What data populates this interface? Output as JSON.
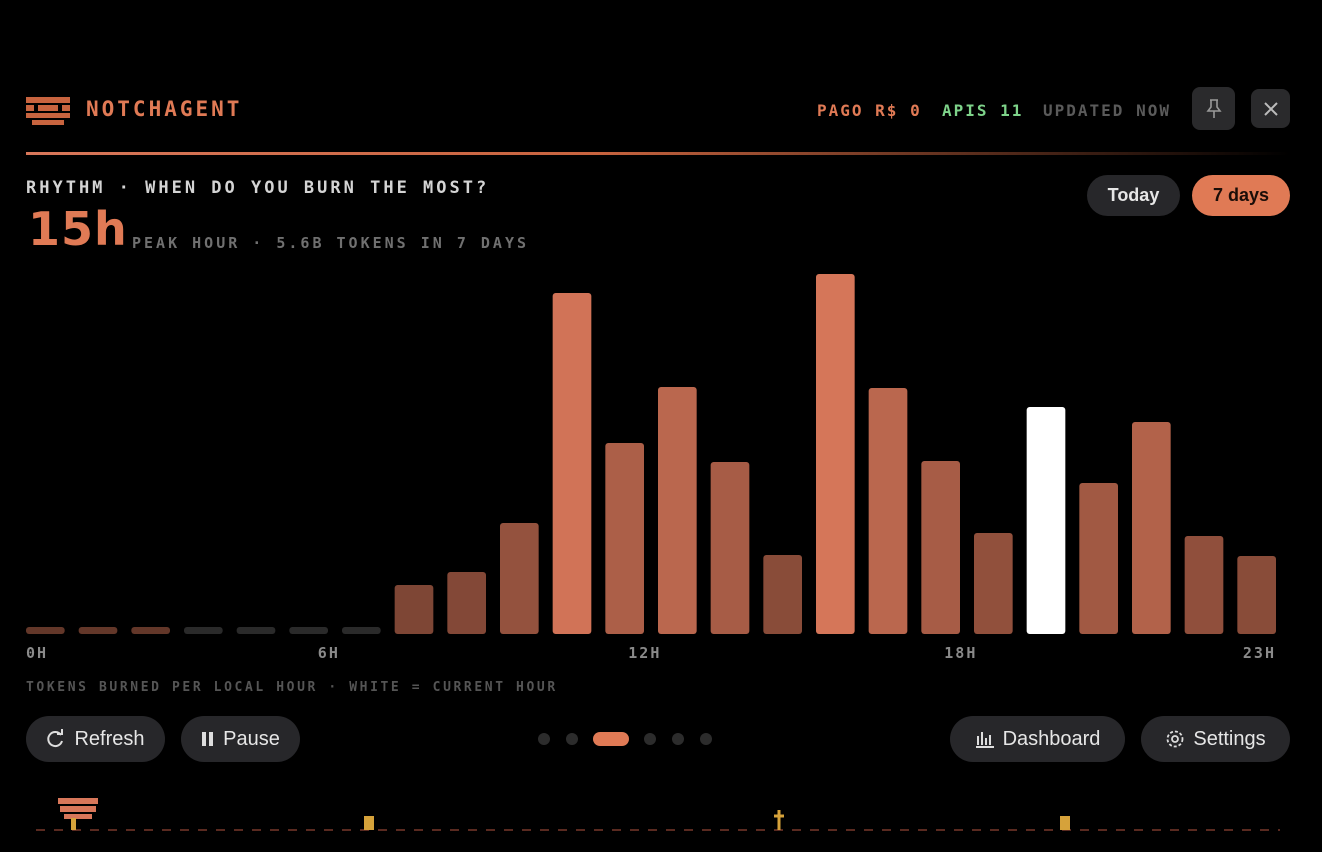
{
  "header": {
    "title": "NOTCHAGENT",
    "pago": "PAGO R$ 0",
    "apis": "APIS 11",
    "updated": "UPDATED NOW"
  },
  "section": {
    "title": "RHYTHM · WHEN DO YOU BURN THE MOST?",
    "peak": "15h",
    "subtitle": "PEAK HOUR · 5.6B TOKENS IN 7 DAYS"
  },
  "toggle": [
    "Today",
    "7 days"
  ],
  "chart_data": {
    "type": "bar",
    "x": [
      0,
      1,
      2,
      3,
      4,
      5,
      6,
      7,
      8,
      9,
      10,
      11,
      12,
      13,
      14,
      15,
      16,
      17,
      18,
      19,
      20,
      21,
      22,
      23
    ],
    "values": [
      1,
      1,
      1,
      0,
      0,
      0,
      0,
      49,
      62,
      111,
      341,
      191,
      247,
      172,
      79,
      360,
      246,
      173,
      101,
      227,
      151,
      212,
      98,
      78
    ],
    "xlim": [
      0,
      24
    ],
    "ylim": [
      0,
      370
    ],
    "xticks": [
      {
        "value": 0,
        "label": "0H"
      },
      {
        "value": 6,
        "label": "6H"
      },
      {
        "value": 12,
        "label": "12H"
      },
      {
        "value": 18,
        "label": "18H"
      },
      {
        "value": 23,
        "label": "23H"
      }
    ],
    "color": "#d8775a",
    "empty_color": "#2a2a2a",
    "highlight_index": 19,
    "highlight_color": "#ffffff",
    "caption": "TOKENS BURNED PER LOCAL HOUR · WHITE = CURRENT HOUR"
  },
  "buttons": [
    "Refresh",
    "Pause",
    "Dashboard",
    "Settings"
  ]
}
